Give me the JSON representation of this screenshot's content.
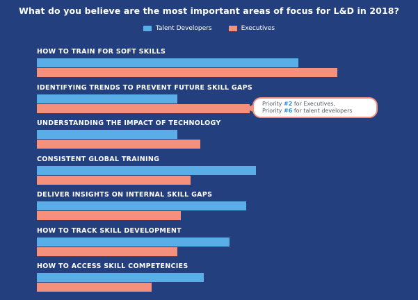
{
  "chart_data": {
    "type": "bar",
    "orientation": "horizontal",
    "title": "What do you believe are the most important areas of focus for L&D in 2018?",
    "xlabel": "",
    "ylabel": "",
    "xlim": [
      0,
      100
    ],
    "legend": "top-center",
    "grid": false,
    "colors": {
      "Talent Developers": "#5aaee8",
      "Executives": "#f4907c"
    },
    "categories": [
      "HOW TO TRAIN FOR SOFT SKILLS",
      "IDENTIFYING TRENDS TO PREVENT FUTURE SKILL GAPS",
      "UNDERSTANDING THE IMPACT OF TECHNOLOGY",
      "CONSISTENT GLOBAL TRAINING",
      "DELIVER INSIGHTS ON INTERNAL SKILL GAPS",
      "HOW TO TRACK SKILL DEVELOPMENT",
      "HOW TO ACCESS SKILL COMPETENCIES"
    ],
    "series": [
      {
        "name": "Talent Developers",
        "values": [
          80,
          43,
          43,
          67,
          64,
          59,
          51
        ]
      },
      {
        "name": "Executives",
        "values": [
          92,
          65,
          50,
          47,
          44,
          43,
          35
        ]
      }
    ],
    "annotation": {
      "line1_prefix": "Priority ",
      "line1_rank": "#2",
      "line1_suffix": " for Executives,",
      "line2_prefix": "Priority ",
      "line2_rank": "#6",
      "line2_suffix": " for talent developers"
    }
  }
}
